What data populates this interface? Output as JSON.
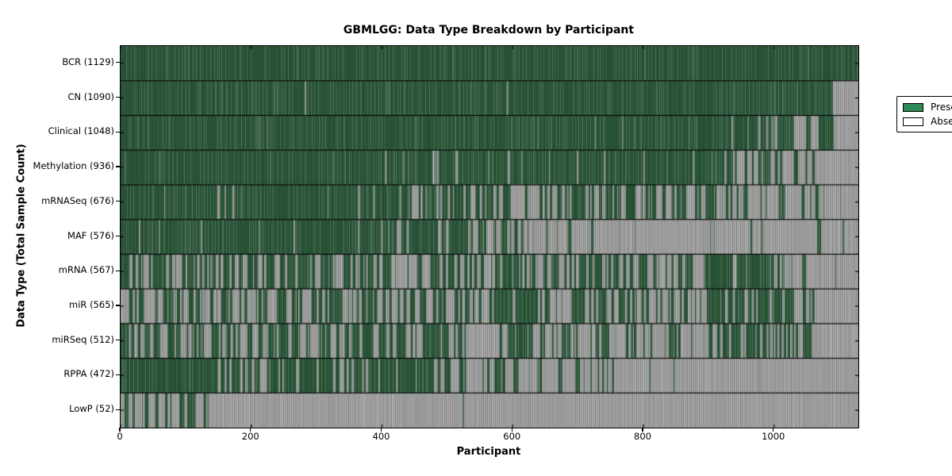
{
  "chart_data": {
    "type": "heatmap",
    "title": "GBMLGG: Data Type Breakdown by Participant",
    "xlabel": "Participant",
    "ylabel": "Data Type (Total Sample Count)",
    "x_ticks": [
      0,
      200,
      400,
      600,
      800,
      1000
    ],
    "x_range": [
      0,
      1129
    ],
    "grid": false,
    "legend_position": "upper right",
    "legend": [
      {
        "label": "Present",
        "color": "#2e8b57"
      },
      {
        "label": "Absent",
        "color": "#ffffff"
      }
    ],
    "colors": {
      "present_fill": "#2d5c3c",
      "absent_fill": "#ababab",
      "edge_line": "rgba(0,0,0,0.32)",
      "divider": "#000000",
      "frame": "#000000"
    },
    "rows": [
      {
        "name": "BCR",
        "count": 1129,
        "label": "BCR (1129)",
        "segments": [
          [
            0,
            1129,
            1
          ]
        ]
      },
      {
        "name": "CN",
        "count": 1090,
        "label": "CN (1090)",
        "segments": [
          [
            0,
            130,
            1
          ],
          [
            130,
            1090,
            0.99
          ],
          [
            1090,
            1129,
            0
          ]
        ]
      },
      {
        "name": "Clinical",
        "count": 1048,
        "label": "Clinical (1048)",
        "segments": [
          [
            0,
            640,
            0.997
          ],
          [
            640,
            930,
            0.98
          ],
          [
            930,
            1030,
            0.6
          ],
          [
            1030,
            1068,
            0.3
          ],
          [
            1068,
            1092,
            0.85
          ],
          [
            1092,
            1129,
            0.02
          ]
        ]
      },
      {
        "name": "Methylation",
        "count": 936,
        "label": "Methylation (936)",
        "segments": [
          [
            0,
            170,
            1
          ],
          [
            170,
            430,
            0.98
          ],
          [
            430,
            920,
            0.86
          ],
          [
            920,
            1063,
            0.4
          ],
          [
            1063,
            1129,
            0.02
          ]
        ]
      },
      {
        "name": "mRNASeq",
        "count": 676,
        "label": "mRNASeq (676)",
        "segments": [
          [
            0,
            128,
            0.98
          ],
          [
            128,
            185,
            0.72
          ],
          [
            185,
            415,
            0.92
          ],
          [
            415,
            575,
            0.62
          ],
          [
            575,
            915,
            0.5
          ],
          [
            915,
            1078,
            0.3
          ],
          [
            1078,
            1129,
            0.08
          ]
        ]
      },
      {
        "name": "MAF",
        "count": 576,
        "label": "MAF (576)",
        "segments": [
          [
            0,
            415,
            0.965
          ],
          [
            415,
            555,
            0.75
          ],
          [
            555,
            615,
            0.55
          ],
          [
            615,
            700,
            0.35
          ],
          [
            700,
            1055,
            0.1
          ],
          [
            1055,
            1080,
            0.45
          ],
          [
            1080,
            1129,
            0.06
          ]
        ]
      },
      {
        "name": "mRNA",
        "count": 567,
        "label": "mRNA (567)",
        "segments": [
          [
            0,
            14,
            1
          ],
          [
            14,
            420,
            0.55
          ],
          [
            420,
            900,
            0.5
          ],
          [
            900,
            1000,
            0.78
          ],
          [
            1000,
            1072,
            0.42
          ],
          [
            1072,
            1129,
            0.07
          ]
        ]
      },
      {
        "name": "miR",
        "count": 565,
        "label": "miR (565)",
        "segments": [
          [
            0,
            11,
            0
          ],
          [
            11,
            560,
            0.55
          ],
          [
            560,
            660,
            0.65
          ],
          [
            660,
            900,
            0.47
          ],
          [
            900,
            1000,
            0.7
          ],
          [
            1000,
            1062,
            0.45
          ],
          [
            1062,
            1129,
            0.04
          ]
        ]
      },
      {
        "name": "miRSeq",
        "count": 512,
        "label": "miRSeq (512)",
        "segments": [
          [
            0,
            9,
            0.9
          ],
          [
            9,
            430,
            0.53
          ],
          [
            430,
            660,
            0.5
          ],
          [
            660,
            900,
            0.38
          ],
          [
            900,
            1000,
            0.66
          ],
          [
            1000,
            1058,
            0.45
          ],
          [
            1058,
            1129,
            0.03
          ]
        ]
      },
      {
        "name": "RPPA",
        "count": 472,
        "label": "RPPA (472)",
        "segments": [
          [
            0,
            130,
            0.95
          ],
          [
            130,
            480,
            0.76
          ],
          [
            480,
            590,
            0.5
          ],
          [
            590,
            700,
            0.3
          ],
          [
            700,
            770,
            0.18
          ],
          [
            770,
            1129,
            0.04
          ]
        ]
      },
      {
        "name": "LowP",
        "count": 52,
        "label": "LowP (52)",
        "segments": [
          [
            0,
            6,
            0
          ],
          [
            6,
            135,
            0.42
          ],
          [
            135,
            1129,
            0.004
          ]
        ]
      }
    ]
  }
}
